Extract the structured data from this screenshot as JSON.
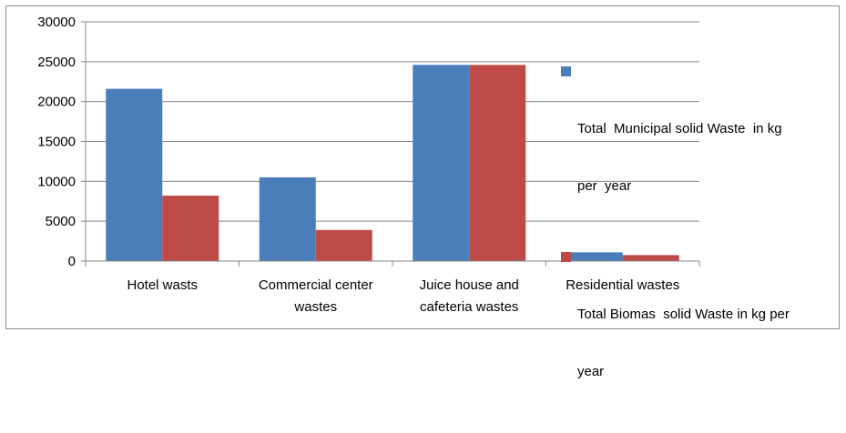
{
  "chart_data": {
    "type": "bar",
    "title": "",
    "xlabel": "",
    "ylabel": "",
    "categories": [
      [
        "Hotel wasts"
      ],
      [
        "Commercial center",
        "wastes"
      ],
      [
        "Juice house and",
        "cafeteria wastes"
      ],
      [
        "Residential wastes"
      ]
    ],
    "series": [
      {
        "name": [
          "Total  Municipal solid Waste  in kg",
          "per  year"
        ],
        "color": "#4a7ebb",
        "values": [
          21600,
          10500,
          24600,
          1100
        ]
      },
      {
        "name": [
          "Total Biomas  solid Waste in kg per",
          "year"
        ],
        "color": "#be4b48",
        "values": [
          8200,
          3900,
          24600,
          750
        ]
      }
    ],
    "ylim": [
      0,
      30000
    ],
    "yticks": [
      0,
      5000,
      10000,
      15000,
      20000,
      25000,
      30000
    ],
    "grid": true,
    "legend_position": "right"
  }
}
